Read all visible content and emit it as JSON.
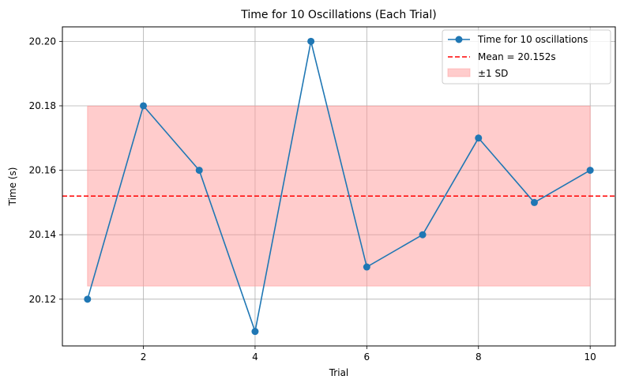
{
  "chart_data": {
    "type": "line",
    "title": "Time for 10 Oscillations (Each Trial)",
    "xlabel": "Trial",
    "ylabel": "Time (s)",
    "xlim": [
      0.55,
      10.45
    ],
    "ylim": [
      20.1055,
      20.2045
    ],
    "x_ticks": [
      2,
      4,
      6,
      8,
      10
    ],
    "y_ticks": [
      20.12,
      20.14,
      20.16,
      20.18,
      20.2
    ],
    "y_tick_labels": [
      "20.12",
      "20.14",
      "20.16",
      "20.18",
      "20.20"
    ],
    "grid": true,
    "legend_position": "top-right",
    "series": [
      {
        "name": "Time for 10 oscillations",
        "color": "#1f77b4",
        "x": [
          1,
          2,
          3,
          4,
          5,
          6,
          7,
          8,
          9,
          10
        ],
        "y": [
          20.12,
          20.18,
          20.16,
          20.11,
          20.2,
          20.13,
          20.14,
          20.17,
          20.15,
          20.16
        ]
      }
    ],
    "mean_line": {
      "label": "Mean = 20.152s",
      "value": 20.152,
      "color": "#ff0000"
    },
    "sd_band": {
      "label": "±1 SD",
      "lower": 20.1241,
      "upper": 20.1799,
      "x_start": 1,
      "x_end": 10,
      "color": "#ff9999"
    }
  }
}
